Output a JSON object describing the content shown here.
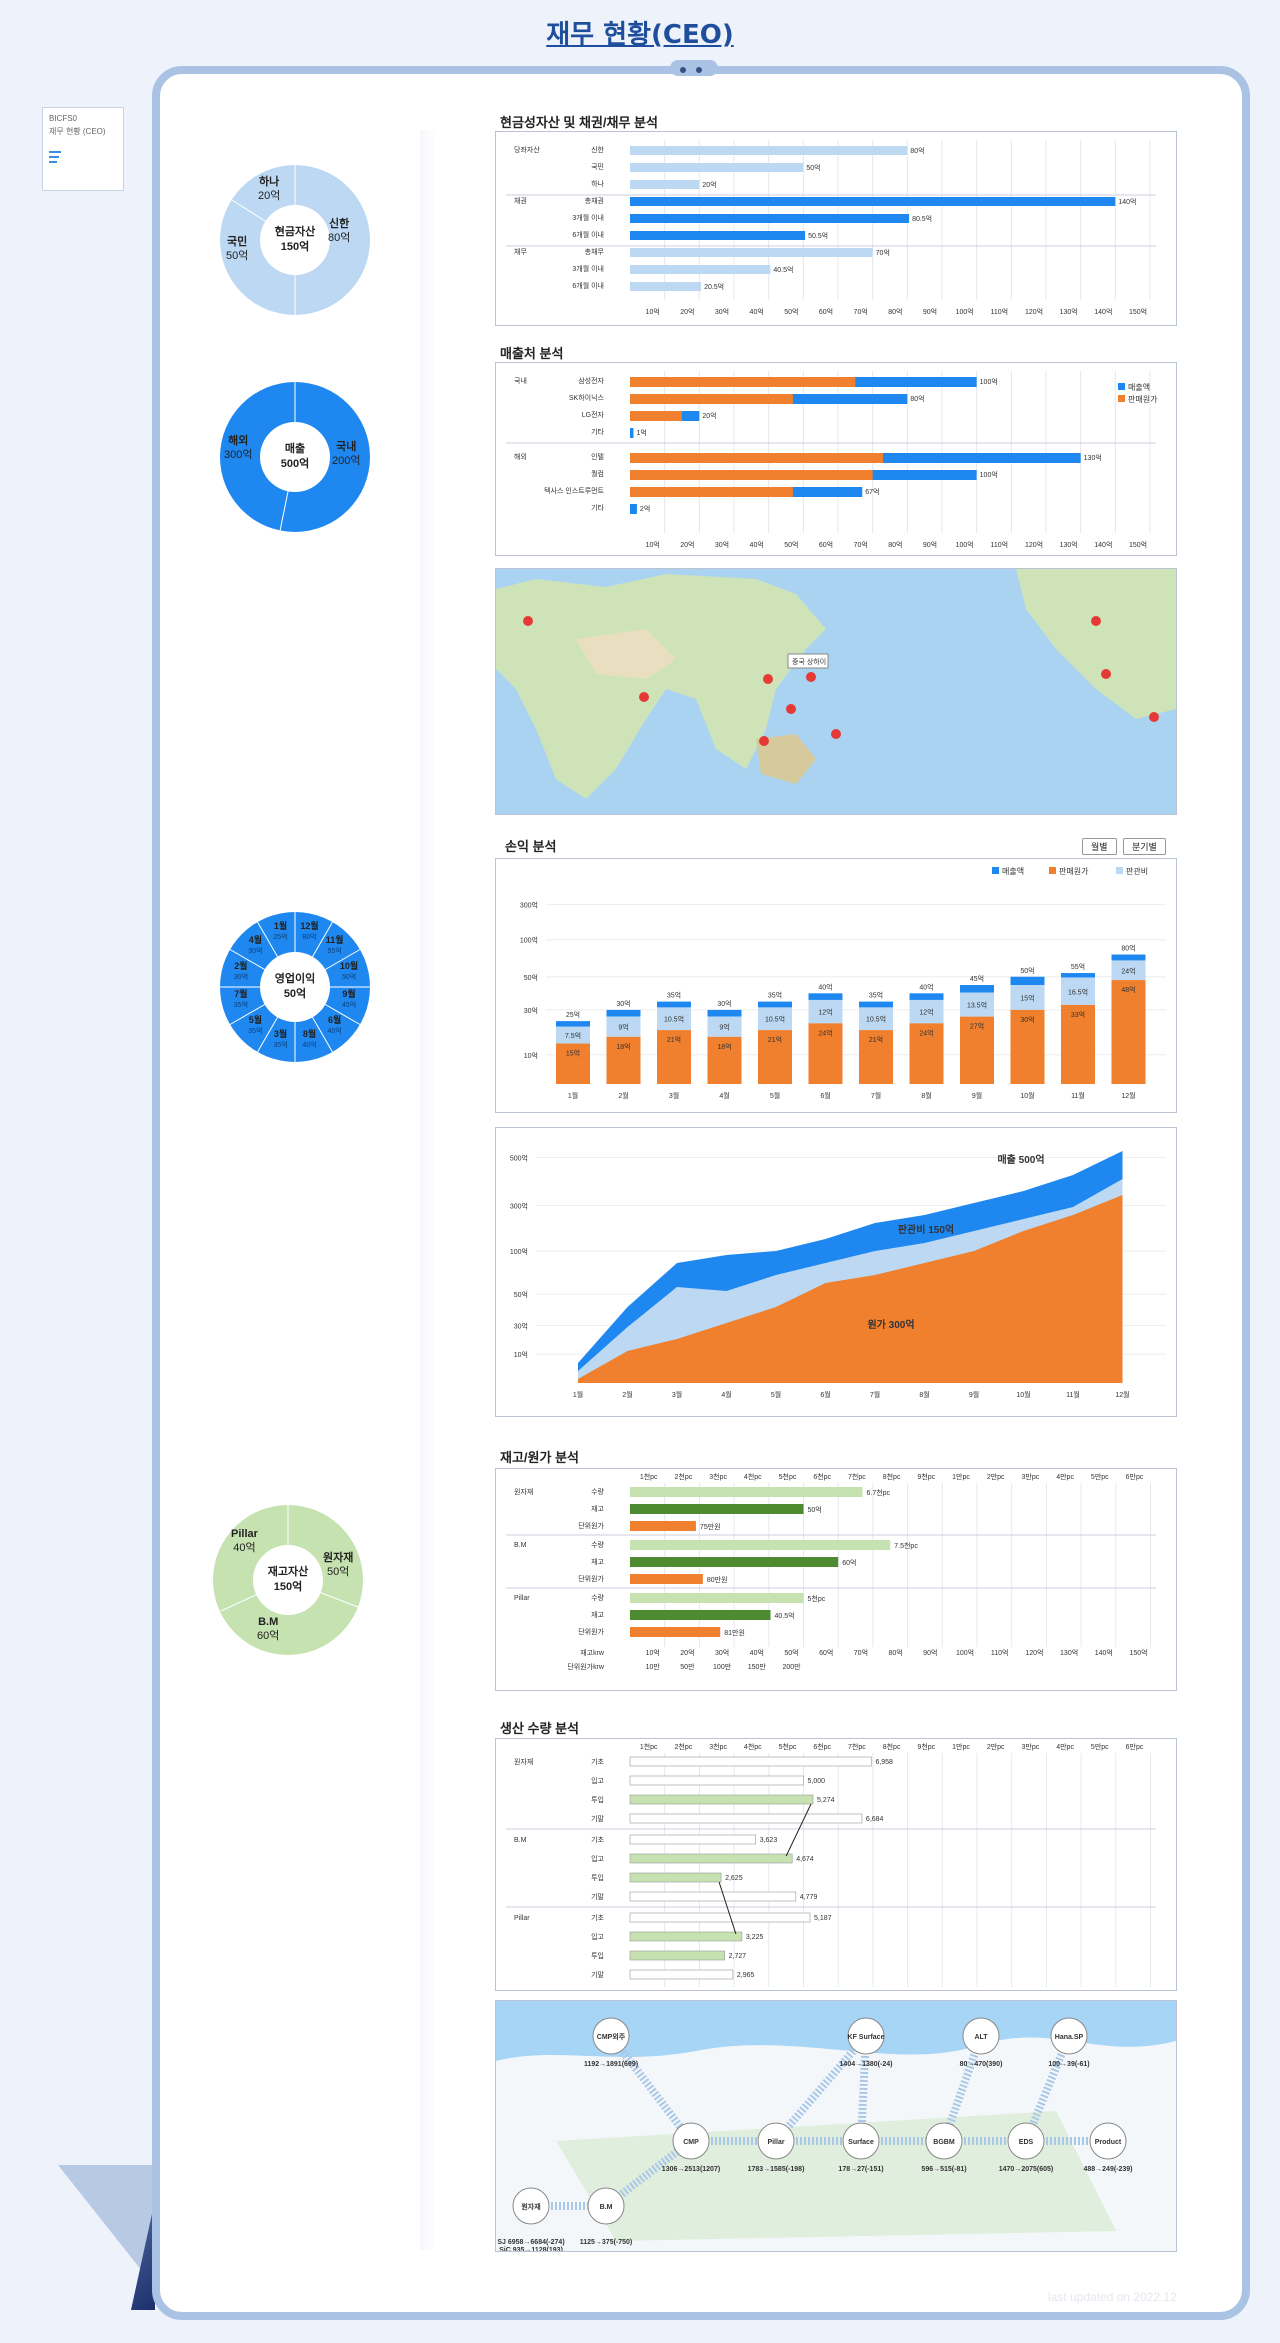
{
  "page": {
    "title": "재무 현황(CEO)",
    "updated": "last updated on 2022.12"
  },
  "mini": {
    "line1": "BICFS0",
    "line2": "재무 현황 (CEO)"
  },
  "colors": {
    "dark_blue": "#1e88f0",
    "light_blue": "#bcd8f2",
    "orange": "#f07f2e",
    "dark_green": "#4e8a2f",
    "light_green": "#c6e2b0",
    "frame": "#aac3e5"
  },
  "donuts": {
    "cash": {
      "center": [
        "현금자산",
        "150억"
      ],
      "segments": [
        {
          "name": "신한",
          "value": "80억",
          "amount": 80
        },
        {
          "name": "국민",
          "value": "50억",
          "amount": 50
        },
        {
          "name": "하나",
          "value": "20억",
          "amount": 20
        }
      ]
    },
    "sales": {
      "center": [
        "매출",
        "500억"
      ],
      "segments": [
        {
          "name": "국내",
          "value": "200억",
          "amount": 200
        },
        {
          "name": "해외",
          "value": "300억",
          "amount": 300
        }
      ]
    },
    "op": {
      "center": [
        "영업이익",
        "50억"
      ],
      "segments": [
        {
          "name": "12월",
          "value": "80억"
        },
        {
          "name": "11월",
          "value": "55억"
        },
        {
          "name": "10월",
          "value": "50억"
        },
        {
          "name": "9월",
          "value": "45억"
        },
        {
          "name": "6월",
          "value": "40억"
        },
        {
          "name": "8월",
          "value": "40억"
        },
        {
          "name": "3월",
          "value": "35억"
        },
        {
          "name": "5월",
          "value": "35억"
        },
        {
          "name": "7월",
          "value": "35억"
        },
        {
          "name": "2월",
          "value": "30억"
        },
        {
          "name": "4월",
          "value": "30억"
        },
        {
          "name": "1월",
          "value": "25억"
        }
      ]
    },
    "inv": {
      "center": [
        "재고자산",
        "150억"
      ],
      "segments": [
        {
          "name": "원자재",
          "value": "50억",
          "amount": 50
        },
        {
          "name": "B.M",
          "value": "60억",
          "amount": 60
        },
        {
          "name": "Pillar",
          "value": "40억",
          "amount": 40
        }
      ]
    }
  },
  "sections": {
    "cash": "현금성자산 및 채권/채무 분석",
    "sales": "매출처 분석",
    "pl": "손익 분석",
    "inventory": "재고/원가 분석",
    "production": "생산 수량 분석"
  },
  "pl_buttons": {
    "monthly": "월별",
    "quarterly": "분기별"
  },
  "common_x_ticks": [
    "10억",
    "20억",
    "30억",
    "40억",
    "50억",
    "60억",
    "70억",
    "80억",
    "90억",
    "100억",
    "110억",
    "120억",
    "130억",
    "140억",
    "150억"
  ],
  "chart_data": [
    {
      "type": "bar",
      "title": "현금성자산 및 채권/채무 분석",
      "groups": [
        {
          "group": "당좌자산",
          "rows": [
            {
              "label": "신한",
              "value": 80,
              "text": "80억",
              "tone": "light"
            },
            {
              "label": "국민",
              "value": 50,
              "text": "50억",
              "tone": "light"
            },
            {
              "label": "하나",
              "value": 20,
              "text": "20억",
              "tone": "light"
            }
          ]
        },
        {
          "group": "채권",
          "rows": [
            {
              "label": "총채권",
              "value": 140,
              "text": "140억",
              "tone": "dark"
            },
            {
              "label": "3개월 이내",
              "value": 80.5,
              "text": "80.5억",
              "tone": "dark"
            },
            {
              "label": "6개월 이내",
              "value": 50.5,
              "text": "50.5억",
              "tone": "dark"
            }
          ]
        },
        {
          "group": "채무",
          "rows": [
            {
              "label": "총채무",
              "value": 70,
              "text": "70억",
              "tone": "light"
            },
            {
              "label": "3개월 이내",
              "value": 40.5,
              "text": "40.5억",
              "tone": "light"
            },
            {
              "label": "6개월 이내",
              "value": 20.5,
              "text": "20.5억",
              "tone": "light"
            }
          ]
        }
      ],
      "xlim": [
        0,
        150
      ]
    },
    {
      "type": "bar",
      "title": "매출처 분석",
      "legend": [
        "매출액",
        "판매원가"
      ],
      "groups": [
        {
          "group": "국내",
          "rows": [
            {
              "label": "삼성전자",
              "sales": 100,
              "cost": 65,
              "text": "100억"
            },
            {
              "label": "SK하이닉스",
              "sales": 80,
              "cost": 47,
              "text": "80억"
            },
            {
              "label": "LG전자",
              "sales": 20,
              "cost": 15,
              "text": "20억"
            },
            {
              "label": "기타",
              "sales": 1,
              "cost": 0,
              "text": "1억"
            }
          ]
        },
        {
          "group": "해외",
          "rows": [
            {
              "label": "인텔",
              "sales": 130,
              "cost": 73,
              "text": "130억"
            },
            {
              "label": "퀄컴",
              "sales": 100,
              "cost": 70,
              "text": "100억"
            },
            {
              "label": "텍사스 인스트루먼트",
              "sales": 67,
              "cost": 47,
              "text": "67억"
            },
            {
              "label": "기타",
              "sales": 2,
              "cost": 0,
              "text": "2억"
            }
          ]
        }
      ],
      "xlim": [
        0,
        150
      ]
    },
    {
      "type": "bar",
      "title": "손익 분석",
      "legend": [
        "매출액",
        "판매원가",
        "판관비"
      ],
      "categories": [
        "1월",
        "2월",
        "3월",
        "4월",
        "5월",
        "6월",
        "7월",
        "8월",
        "9월",
        "10월",
        "11월",
        "12월"
      ],
      "series": [
        {
          "name": "판매원가",
          "values": [
            15,
            18,
            21,
            18,
            21,
            24,
            21,
            24,
            27,
            30,
            33,
            48
          ]
        },
        {
          "name": "판관비",
          "values": [
            7.5,
            9,
            10.5,
            9,
            10.5,
            12,
            10.5,
            12,
            13.5,
            15,
            16.5,
            24
          ]
        },
        {
          "name": "매출액",
          "values": [
            25,
            30,
            35,
            30,
            35,
            40,
            35,
            40,
            45,
            50,
            55,
            80
          ]
        }
      ],
      "cost_labels": [
        "15억",
        "18억",
        "21억",
        "18억",
        "21억",
        "24억",
        "21억",
        "24억",
        "27억",
        "30억",
        "33억",
        "48억"
      ],
      "sga_labels": [
        "7.5억",
        "9억",
        "10.5억",
        "9억",
        "10.5억",
        "12억",
        "10.5억",
        "12억",
        "13.5억",
        "15억",
        "16.5억",
        "24억"
      ],
      "total_labels": [
        "25억",
        "30억",
        "35억",
        "30억",
        "35억",
        "40억",
        "35억",
        "40억",
        "45억",
        "50억",
        "55억",
        "80억"
      ],
      "y_ticks": [
        "10억",
        "30억",
        "50억",
        "100억",
        "300억"
      ]
    },
    {
      "type": "area",
      "categories": [
        "1월",
        "2월",
        "3월",
        "4월",
        "5월",
        "6월",
        "7월",
        "8월",
        "9월",
        "10월",
        "11월",
        "12월"
      ],
      "y_ticks": [
        "10억",
        "30억",
        "50억",
        "100억",
        "300억",
        "500억"
      ],
      "annotations": [
        "매출 500억",
        "판관비 150억",
        "원가 300억"
      ],
      "series": [
        {
          "name": "원가",
          "values": [
            5,
            40,
            55,
            75,
            95,
            125,
            135,
            150,
            165,
            190,
            210,
            235
          ]
        },
        {
          "name": "판관비",
          "values": [
            15,
            70,
            120,
            115,
            135,
            150,
            165,
            175,
            190,
            205,
            220,
            255
          ]
        },
        {
          "name": "매출",
          "values": [
            25,
            95,
            150,
            160,
            165,
            180,
            200,
            210,
            225,
            240,
            260,
            290
          ]
        }
      ]
    },
    {
      "type": "bar",
      "title": "재고/원가 분석",
      "top_ticks": [
        "1천pc",
        "2천pc",
        "3천pc",
        "4천pc",
        "5천pc",
        "6천pc",
        "7천pc",
        "8천pc",
        "9천pc",
        "1만pc",
        "2만pc",
        "3만pc",
        "4만pc",
        "5만pc",
        "6만pc"
      ],
      "groups": [
        {
          "group": "원자재",
          "rows": [
            {
              "label": "수량",
              "value": 6.7,
              "text": "6.7천pc",
              "tone": "light"
            },
            {
              "label": "재고",
              "value": 5,
              "text": "50억",
              "tone": "dark"
            },
            {
              "label": "단위원가",
              "value": 1.9,
              "text": "75만원",
              "tone": "orange"
            }
          ]
        },
        {
          "group": "B.M",
          "rows": [
            {
              "label": "수량",
              "value": 7.5,
              "text": "7.5천pc",
              "tone": "light"
            },
            {
              "label": "재고",
              "value": 6,
              "text": "60억",
              "tone": "dark"
            },
            {
              "label": "단위원가",
              "value": 2.1,
              "text": "80만원",
              "tone": "orange"
            }
          ]
        },
        {
          "group": "Pillar",
          "rows": [
            {
              "label": "수량",
              "value": 5,
              "text": "5천pc",
              "tone": "light"
            },
            {
              "label": "재고",
              "value": 4.05,
              "text": "40.5억",
              "tone": "dark"
            },
            {
              "label": "단위원가",
              "value": 2.6,
              "text": "81만원",
              "tone": "orange"
            }
          ]
        }
      ],
      "bottom_labels": {
        "stock": "재고krw",
        "unit": "단위원가krw"
      },
      "unit_ticks": [
        "10만",
        "50만",
        "100만",
        "150만",
        "200만"
      ]
    },
    {
      "type": "bar",
      "title": "생산 수량 분석",
      "groups": [
        {
          "group": "원자재",
          "rows": [
            {
              "label": "기초",
              "value": 6958,
              "text": "6,958",
              "tone": "white"
            },
            {
              "label": "입고",
              "value": 5000,
              "text": "5,000",
              "tone": "white"
            },
            {
              "label": "투입",
              "value": 5274,
              "text": "5,274",
              "tone": "green"
            },
            {
              "label": "기말",
              "value": 6684,
              "text": "6,684",
              "tone": "white"
            }
          ]
        },
        {
          "group": "B.M",
          "rows": [
            {
              "label": "기초",
              "value": 3623,
              "text": "3,623",
              "tone": "white"
            },
            {
              "label": "입고",
              "value": 4674,
              "text": "4,674",
              "tone": "green"
            },
            {
              "label": "투입",
              "value": 2625,
              "text": "2,625",
              "tone": "green"
            },
            {
              "label": "기말",
              "value": 4779,
              "text": "4,779",
              "tone": "white"
            }
          ]
        },
        {
          "group": "Pillar",
          "rows": [
            {
              "label": "기초",
              "value": 5187,
              "text": "5,187",
              "tone": "white"
            },
            {
              "label": "입고",
              "value": 3225,
              "text": "3,225",
              "tone": "green"
            },
            {
              "label": "투입",
              "value": 2727,
              "text": "2,727",
              "tone": "green"
            },
            {
              "label": "기말",
              "value": 2965,
              "text": "2,965",
              "tone": "white"
            }
          ]
        }
      ]
    }
  ],
  "flow": {
    "nodes": [
      {
        "name": "CMP외주",
        "value": "1192→1891(699)"
      },
      {
        "name": "KF Surface",
        "value": "1404→1380(-24)"
      },
      {
        "name": "ALT",
        "value": "80→470(390)"
      },
      {
        "name": "Hana.SP",
        "value": "100→39(-61)"
      },
      {
        "name": "CMP",
        "value": "1306→2513(1207)"
      },
      {
        "name": "Pillar",
        "value": "1783→1585(-198)"
      },
      {
        "name": "Surface",
        "value": "178→27(-151)"
      },
      {
        "name": "BGBM",
        "value": "596→515(-81)"
      },
      {
        "name": "EDS",
        "value": "1470→2075(605)"
      },
      {
        "name": "Product",
        "value": "488→249(-239)"
      },
      {
        "name": "원자재",
        "value": "SJ 6958→6684(-274)",
        "value2": "SiC 935→1128(193)"
      },
      {
        "name": "B.M",
        "value": "1125→375(-750)"
      }
    ]
  },
  "map": {
    "popup": "중국 상하이"
  }
}
